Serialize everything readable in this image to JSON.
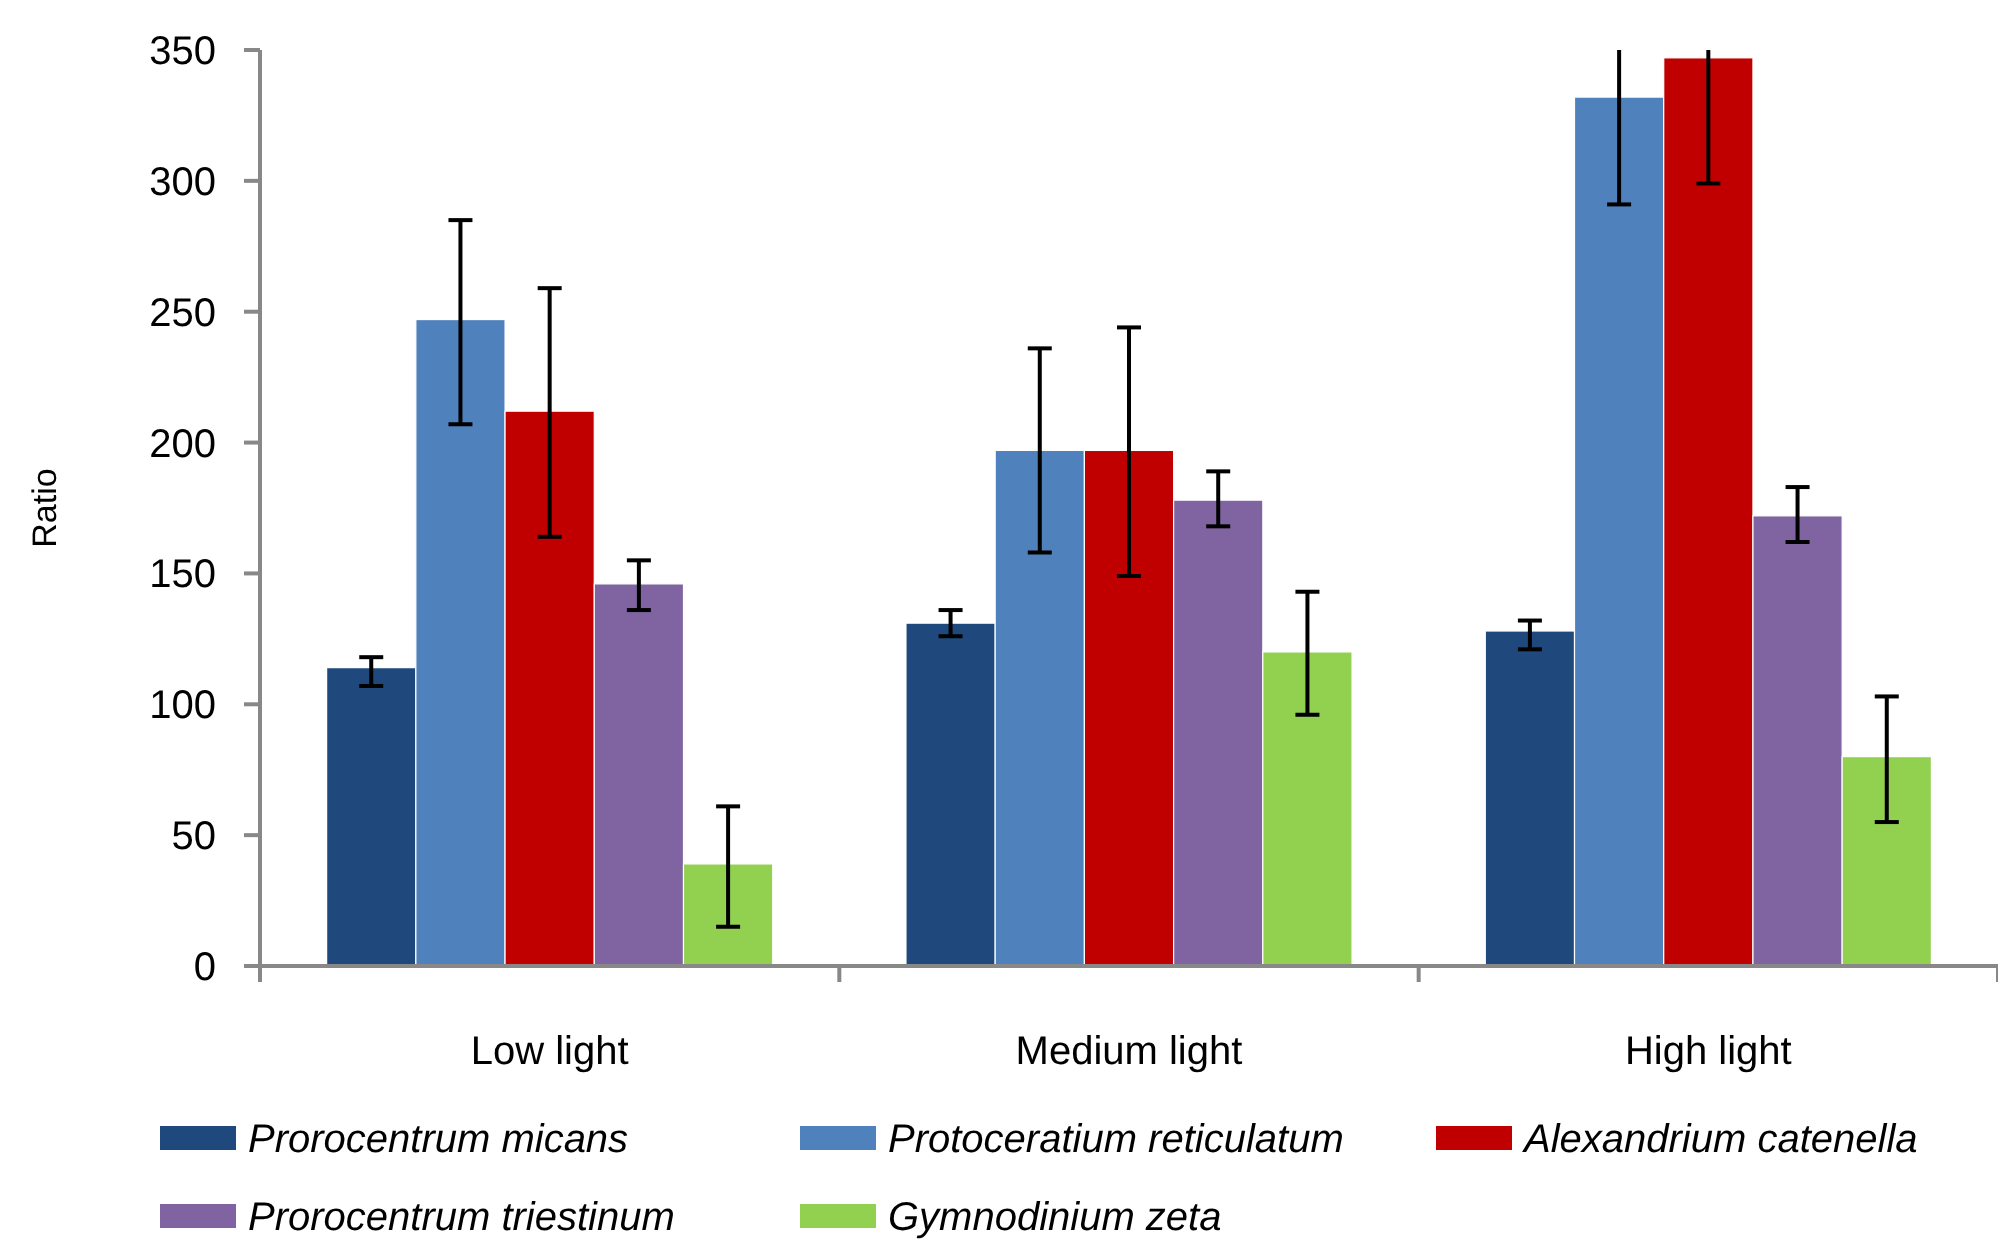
{
  "chart_data": {
    "type": "bar",
    "ylabel": "Ratio",
    "categories": [
      "Low light",
      "Medium light",
      "High light"
    ],
    "ylim": [
      0,
      350
    ],
    "yticks": [
      0,
      50,
      100,
      150,
      200,
      250,
      300,
      350
    ],
    "grid": false,
    "legend": "bottom",
    "series": [
      {
        "name": "Prorocentrum micans",
        "color": "#1f497d",
        "values": [
          114,
          131,
          128
        ],
        "errors": [
          [
            107,
            118
          ],
          [
            126,
            136
          ],
          [
            121,
            132
          ]
        ]
      },
      {
        "name": "Protoceratium reticulatum",
        "color": "#4f81bd",
        "values": [
          247,
          197,
          332
        ],
        "errors": [
          [
            207,
            285
          ],
          [
            158,
            236
          ],
          [
            291,
            350
          ]
        ]
      },
      {
        "name": "Alexandrium catenella",
        "color": "#c00000",
        "values": [
          212,
          197,
          347
        ],
        "errors": [
          [
            164,
            259
          ],
          [
            149,
            244
          ],
          [
            299,
            350
          ]
        ]
      },
      {
        "name": "Prorocentrum triestinum",
        "color": "#8064a2",
        "values": [
          146,
          178,
          172
        ],
        "errors": [
          [
            136,
            155
          ],
          [
            168,
            189
          ],
          [
            162,
            183
          ]
        ]
      },
      {
        "name": "Gymnodinium zeta",
        "color": "#92d050",
        "values": [
          39,
          120,
          80
        ],
        "errors": [
          [
            15,
            61
          ],
          [
            96,
            143
          ],
          [
            55,
            103
          ]
        ]
      }
    ]
  }
}
